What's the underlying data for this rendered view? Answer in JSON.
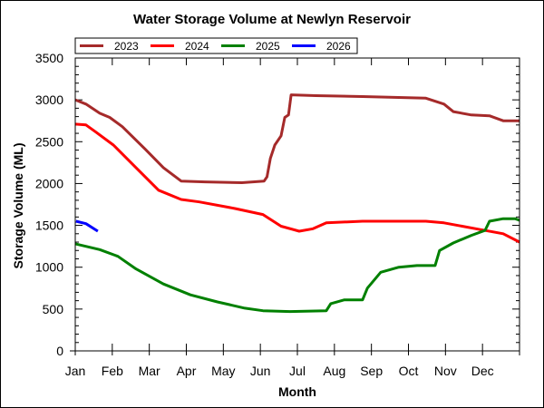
{
  "chart_data": {
    "type": "line",
    "title": "Water Storage Volume at Newlyn Reservoir",
    "xlabel": "Month",
    "ylabel": "Storage Volume (ML)",
    "x_unit": "month (0 = 1 Jan, 12 = 31 Dec)",
    "xlim": [
      0,
      12
    ],
    "ylim": [
      0,
      3500
    ],
    "xticks": [
      "Jan",
      "Feb",
      "Mar",
      "Apr",
      "May",
      "Jun",
      "Jul",
      "Aug",
      "Sep",
      "Oct",
      "Nov",
      "Dec"
    ],
    "yticks": [
      0,
      500,
      1000,
      1500,
      2000,
      2500,
      3000,
      3500
    ],
    "grid": false,
    "legend_position": "top-left",
    "series": [
      {
        "name": "2023",
        "color": "#a52a2a",
        "x": [
          0,
          0.29,
          0.66,
          0.93,
          1.27,
          1.89,
          2.38,
          2.86,
          3.5,
          4.5,
          5.1,
          5.18,
          5.27,
          5.39,
          5.56,
          5.66,
          5.76,
          5.83,
          6.5,
          7.76,
          9.47,
          9.96,
          10.21,
          10.7,
          11.19,
          11.56,
          12
        ],
        "y": [
          3000,
          2950,
          2840,
          2790,
          2680,
          2410,
          2190,
          2030,
          2020,
          2010,
          2030,
          2080,
          2300,
          2460,
          2570,
          2790,
          2820,
          3060,
          3050,
          3040,
          3020,
          2950,
          2860,
          2820,
          2810,
          2750,
          2750
        ]
      },
      {
        "name": "2024",
        "color": "#ff0000",
        "x": [
          0,
          0.29,
          0.54,
          1.03,
          1.64,
          2.25,
          2.86,
          3.35,
          4.33,
          5.07,
          5.56,
          6.05,
          6.42,
          6.78,
          7.76,
          9.47,
          9.96,
          10.94,
          11.56,
          12
        ],
        "y": [
          2710,
          2700,
          2620,
          2460,
          2190,
          1920,
          1810,
          1780,
          1700,
          1630,
          1490,
          1430,
          1460,
          1530,
          1550,
          1550,
          1530,
          1450,
          1400,
          1300
        ]
      },
      {
        "name": "2025",
        "color": "#008000",
        "x": [
          0,
          0.66,
          1.15,
          1.64,
          2.38,
          3.11,
          3.84,
          4.58,
          5.07,
          5.8,
          6.78,
          6.9,
          7.27,
          7.76,
          7.89,
          8.25,
          8.74,
          9.23,
          9.72,
          9.84,
          10.21,
          10.7,
          11.07,
          11.19,
          11.56,
          11.88,
          12
        ],
        "y": [
          1280,
          1210,
          1130,
          980,
          800,
          670,
          585,
          510,
          480,
          470,
          480,
          565,
          610,
          610,
          750,
          940,
          1000,
          1020,
          1020,
          1200,
          1290,
          1380,
          1440,
          1550,
          1580,
          1580,
          1560
        ]
      },
      {
        "name": "2026",
        "color": "#0000ff",
        "x": [
          0.02,
          0.29,
          0.61
        ],
        "y": [
          1550,
          1520,
          1430
        ]
      }
    ]
  }
}
